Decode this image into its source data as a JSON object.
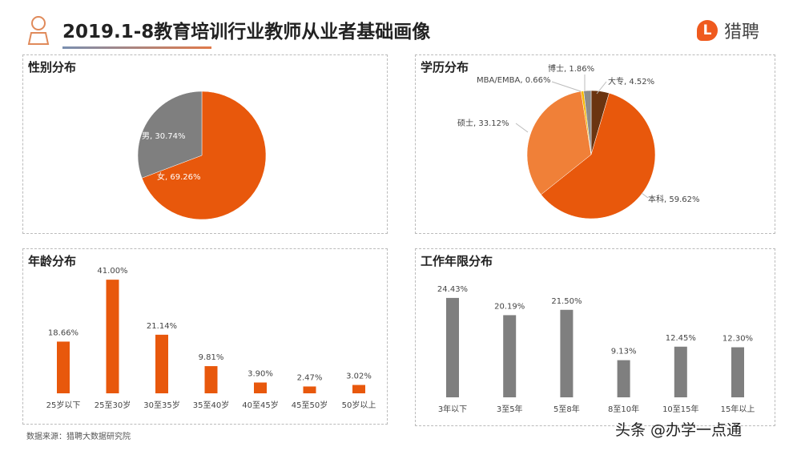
{
  "header": {
    "title": "2019.1-8教育培训行业教师从业者基础画像",
    "logo_text": "猎聘",
    "logo_mark": "L",
    "accent": "#ef5a1e"
  },
  "footer": {
    "source": "数据来源：猎聘大数据研究院",
    "watermark": "头条 @办学一点通"
  },
  "chart_data": [
    {
      "type": "pie",
      "title": "性别分布",
      "slices": [
        {
          "label": "女",
          "value": 69.26,
          "text": "女, 69.26%",
          "color": "#e8580c"
        },
        {
          "label": "男",
          "value": 30.74,
          "text": "男, 30.74%",
          "color": "#7f7f7f"
        }
      ]
    },
    {
      "type": "pie",
      "title": "学历分布",
      "slices": [
        {
          "label": "大专",
          "value": 4.52,
          "text": "大专, 4.52%",
          "color": "#6b3410"
        },
        {
          "label": "本科",
          "value": 59.62,
          "text": "本科, 59.62%",
          "color": "#e8580c"
        },
        {
          "label": "硕士",
          "value": 33.12,
          "text": "硕士, 33.12%",
          "color": "#f08038"
        },
        {
          "label": "MBA/EMBA",
          "value": 0.66,
          "text": "MBA/EMBA, 0.66%",
          "color": "#f5b800"
        },
        {
          "label": "博士",
          "value": 1.86,
          "text": "博士, 1.86%",
          "color": "#8c8c8c"
        }
      ]
    },
    {
      "type": "bar",
      "title": "年龄分布",
      "color": "#e8580c",
      "categories": [
        "25岁以下",
        "25至30岁",
        "30至35岁",
        "35至40岁",
        "40至45岁",
        "45至50岁",
        "50岁以上"
      ],
      "values": [
        18.66,
        41.0,
        21.14,
        9.81,
        3.9,
        2.47,
        3.02
      ],
      "labels": [
        "18.66%",
        "41.00%",
        "21.14%",
        "9.81%",
        "3.90%",
        "2.47%",
        "3.02%"
      ]
    },
    {
      "type": "bar",
      "title": "工作年限分布",
      "color": "#7f7f7f",
      "categories": [
        "3年以下",
        "3至5年",
        "5至8年",
        "8至10年",
        "10至15年",
        "15年以上"
      ],
      "values": [
        24.43,
        20.19,
        21.5,
        9.13,
        12.45,
        12.3
      ],
      "labels": [
        "24.43%",
        "20.19%",
        "21.50%",
        "9.13%",
        "12.45%",
        "12.30%"
      ]
    }
  ]
}
